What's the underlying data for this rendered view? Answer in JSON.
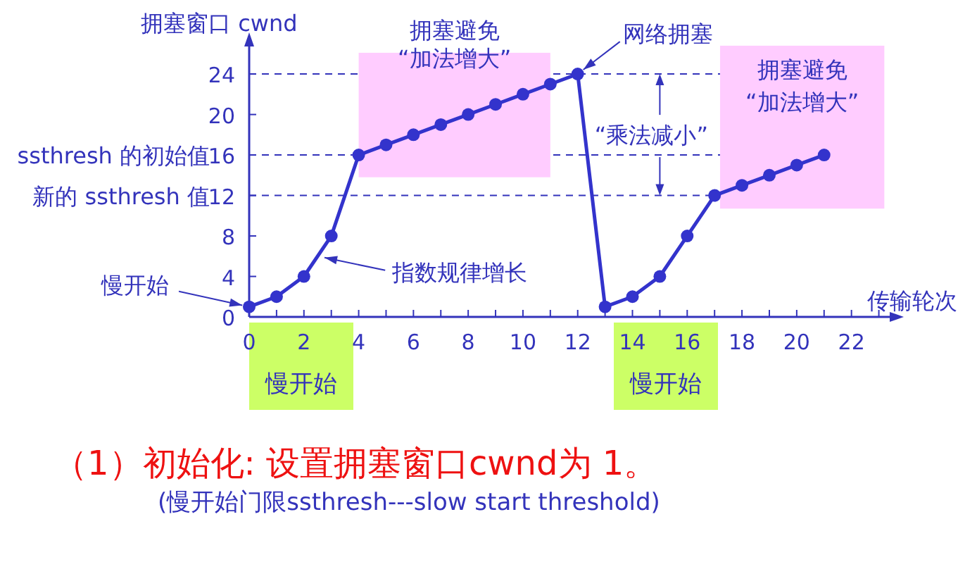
{
  "chart_data": {
    "type": "line",
    "ylabel": "拥塞窗口 cwnd",
    "xlabel": "传输轮次",
    "color": "#3333cc",
    "marker": "circle",
    "line_style": "solid",
    "x": [
      0,
      1,
      2,
      3,
      4,
      5,
      6,
      7,
      8,
      9,
      10,
      11,
      12,
      13,
      14,
      15,
      16,
      17,
      18,
      19,
      20,
      21
    ],
    "values": [
      1,
      2,
      4,
      8,
      16,
      17,
      18,
      19,
      20,
      21,
      22,
      23,
      24,
      1,
      2,
      4,
      8,
      12,
      13,
      14,
      15,
      16
    ],
    "xlim": [
      0,
      23.5
    ],
    "ylim": [
      0,
      27
    ],
    "xticks": [
      0,
      2,
      4,
      6,
      8,
      10,
      12,
      14,
      16,
      18,
      20,
      22
    ],
    "yticks": [
      0,
      4,
      8,
      12,
      16,
      20,
      24
    ],
    "ref_lines": [
      {
        "axis": "y",
        "value": 24,
        "line_style": "dashed"
      },
      {
        "axis": "y",
        "value": 16,
        "label": "ssthresh 的初始值",
        "line_style": "dashed"
      },
      {
        "axis": "y",
        "value": 12,
        "label": "新的 ssthresh 值",
        "line_style": "dashed"
      }
    ],
    "bands": [
      {
        "axis": "x",
        "from": 4,
        "to": 11,
        "label": "拥塞避免\n“加法增大”",
        "color": "#ffccff"
      },
      {
        "axis": "x",
        "from": 17.2,
        "to": 23.2,
        "label": "拥塞避免\n“加法增大”",
        "color": "#ffccff"
      }
    ],
    "annotations": [
      {
        "text": "慢开始",
        "x": 0,
        "y": 1
      },
      {
        "text": "指数规律增长",
        "x": 2.5,
        "y": 6
      },
      {
        "text": "网络拥塞",
        "x": 12,
        "y": 24
      },
      {
        "text": "“乘法减小”",
        "x": 15,
        "y": 24
      },
      "慢开始",
      "慢开始",
      "（1）初始化: 设置拥塞窗口cwnd为 1。",
      "(慢开始门限ssthresh---slow start threshold)"
    ]
  }
}
